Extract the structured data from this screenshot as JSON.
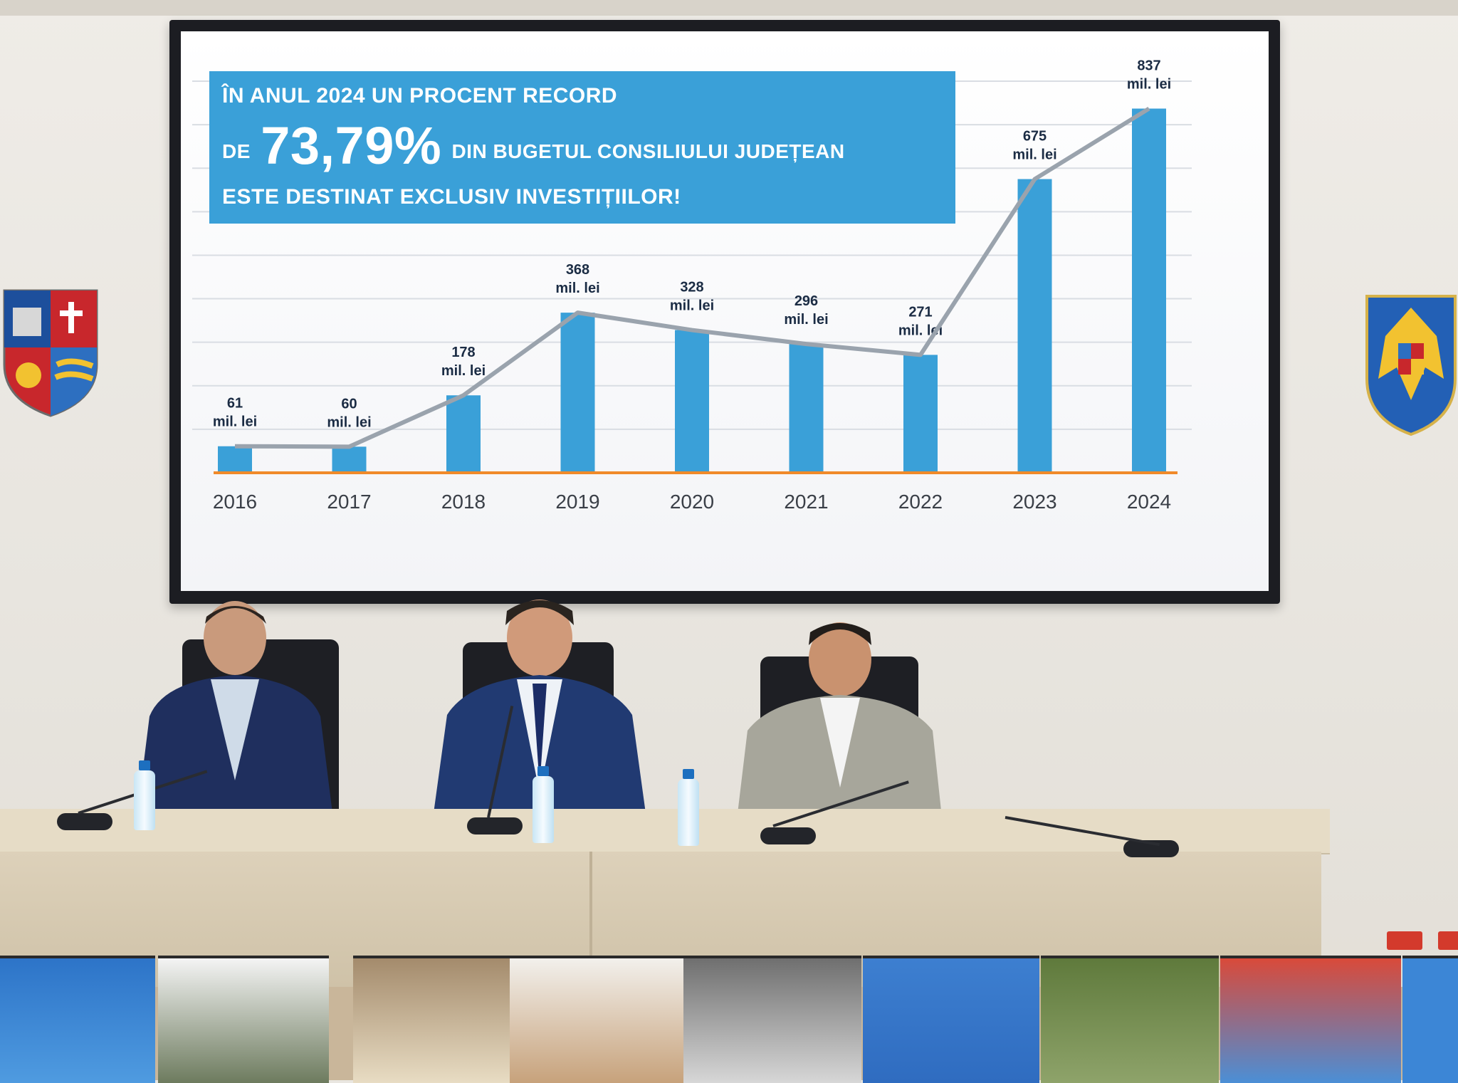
{
  "slide": {
    "banner_line1": "ÎN ANUL 2024 UN PROCENT RECORD",
    "banner_line2_prefix": "DE",
    "banner_percent": "73,79%",
    "banner_line2_suffix": "DIN BUGETUL CONSILIULUI JUDEȚEAN",
    "banner_line3": "ESTE DESTINAT EXCLUSIV INVESTIȚIILOR!",
    "colors": {
      "banner": "#3aa0d8",
      "bars": "#3aa0d8",
      "line": "#9aa3ad",
      "baseline": "#f08a2a"
    }
  },
  "chart_data": {
    "type": "bar",
    "categories": [
      "2016",
      "2017",
      "2018",
      "2019",
      "2020",
      "2021",
      "2022",
      "2023",
      "2024"
    ],
    "values": [
      61,
      60,
      178,
      368,
      328,
      296,
      271,
      675,
      837
    ],
    "unit": "mil. lei",
    "ylim": [
      0,
      900
    ],
    "grid": true,
    "overlay_line": true
  },
  "scene": {
    "crest_left": "county-coat-of-arms",
    "crest_right": "romania-coat-of-arms"
  }
}
